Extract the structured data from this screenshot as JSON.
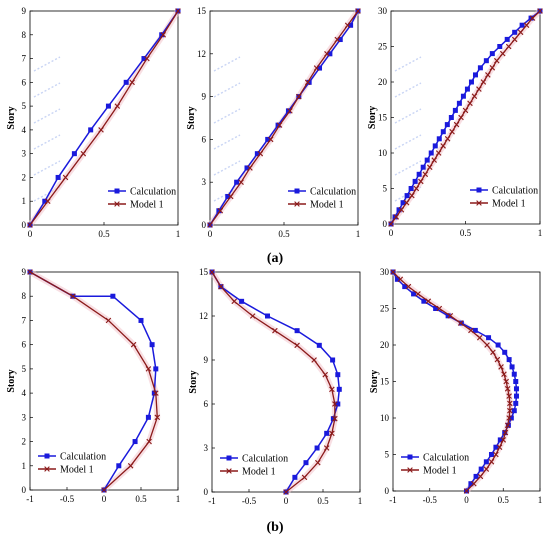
{
  "figure": {
    "panel_labels": [
      "(a)",
      "(b)"
    ]
  },
  "chart_data": [
    {
      "id": "a1",
      "type": "line",
      "ylabel": "Story",
      "xlim": [
        0,
        1
      ],
      "ylim": [
        0,
        9
      ],
      "xticks": [
        "0",
        "0.5",
        "1"
      ],
      "yticks": [
        "0",
        "1",
        "2",
        "3",
        "4",
        "5",
        "6",
        "7",
        "8",
        "9"
      ],
      "legend": "bottom-right",
      "series": [
        {
          "name": "Calculation",
          "color": "#1a1adc",
          "marker": "square",
          "x": [
            0,
            0.1,
            0.19,
            0.3,
            0.41,
            0.53,
            0.65,
            0.77,
            0.89,
            1.0
          ],
          "y": [
            0,
            1,
            2,
            3,
            4,
            5,
            6,
            7,
            8,
            9
          ]
        },
        {
          "name": "Model 1",
          "color": "#8b1a1a",
          "marker": "x",
          "x": [
            0,
            0.12,
            0.24,
            0.36,
            0.48,
            0.59,
            0.69,
            0.79,
            0.9,
            1.0
          ],
          "y": [
            0,
            1,
            2,
            3,
            4,
            5,
            6,
            7,
            8,
            9
          ]
        }
      ]
    },
    {
      "id": "a2",
      "type": "line",
      "ylabel": "Story",
      "xlim": [
        0,
        1
      ],
      "ylim": [
        0,
        15
      ],
      "xticks": [
        "0",
        "0.5",
        "1"
      ],
      "yticks": [
        "0",
        "3",
        "6",
        "9",
        "12",
        "15"
      ],
      "legend": "bottom-right",
      "series": [
        {
          "name": "Calculation",
          "color": "#1a1adc",
          "marker": "square",
          "x": [
            0,
            0.06,
            0.12,
            0.18,
            0.25,
            0.32,
            0.39,
            0.46,
            0.53,
            0.6,
            0.67,
            0.74,
            0.81,
            0.88,
            0.95,
            1.0
          ],
          "y": [
            0,
            1,
            2,
            3,
            4,
            5,
            6,
            7,
            8,
            9,
            10,
            11,
            12,
            13,
            14,
            15
          ]
        },
        {
          "name": "Model 1",
          "color": "#8b1a1a",
          "marker": "x",
          "x": [
            0,
            0.07,
            0.14,
            0.21,
            0.27,
            0.34,
            0.41,
            0.47,
            0.54,
            0.6,
            0.66,
            0.72,
            0.79,
            0.86,
            0.93,
            1.0
          ],
          "y": [
            0,
            1,
            2,
            3,
            4,
            5,
            6,
            7,
            8,
            9,
            10,
            11,
            12,
            13,
            14,
            15
          ]
        }
      ]
    },
    {
      "id": "a3",
      "type": "line",
      "ylabel": "Story",
      "xlim": [
        0,
        1
      ],
      "ylim": [
        0,
        30
      ],
      "xticks": [
        "0",
        "0.5",
        "1"
      ],
      "yticks": [
        "0",
        "5",
        "10",
        "15",
        "20",
        "25",
        "30"
      ],
      "legend": "bottom-right",
      "series": [
        {
          "name": "Calculation",
          "color": "#1a1adc",
          "marker": "square",
          "x": [
            0,
            0.027,
            0.054,
            0.081,
            0.108,
            0.135,
            0.162,
            0.189,
            0.216,
            0.243,
            0.27,
            0.297,
            0.324,
            0.351,
            0.378,
            0.405,
            0.432,
            0.459,
            0.486,
            0.513,
            0.54,
            0.567,
            0.6,
            0.64,
            0.68,
            0.73,
            0.78,
            0.83,
            0.88,
            0.94,
            1.0
          ],
          "y": [
            0,
            1,
            2,
            3,
            4,
            5,
            6,
            7,
            8,
            9,
            10,
            11,
            12,
            13,
            14,
            15,
            16,
            17,
            18,
            19,
            20,
            21,
            22,
            23,
            24,
            25,
            26,
            27,
            28,
            29,
            30
          ]
        },
        {
          "name": "Model 1",
          "color": "#8b1a1a",
          "marker": "x",
          "x": [
            0,
            0.035,
            0.07,
            0.105,
            0.14,
            0.17,
            0.2,
            0.23,
            0.26,
            0.29,
            0.32,
            0.35,
            0.38,
            0.41,
            0.44,
            0.47,
            0.5,
            0.53,
            0.56,
            0.59,
            0.62,
            0.65,
            0.68,
            0.71,
            0.75,
            0.79,
            0.83,
            0.87,
            0.91,
            0.95,
            1.0
          ],
          "y": [
            0,
            1,
            2,
            3,
            4,
            5,
            6,
            7,
            8,
            9,
            10,
            11,
            12,
            13,
            14,
            15,
            16,
            17,
            18,
            19,
            20,
            21,
            22,
            23,
            24,
            25,
            26,
            27,
            28,
            29,
            30
          ]
        }
      ]
    },
    {
      "id": "b1",
      "type": "line",
      "ylabel": "Story",
      "xlim": [
        -1,
        1
      ],
      "ylim": [
        0,
        9
      ],
      "xticks": [
        "-1",
        "-0.5",
        "0",
        "0.5",
        "1"
      ],
      "yticks": [
        "0",
        "1",
        "2",
        "3",
        "4",
        "5",
        "6",
        "7",
        "8",
        "9"
      ],
      "legend": "bottom-left",
      "series": [
        {
          "name": "Calculation",
          "color": "#1a1adc",
          "marker": "square",
          "x": [
            0,
            0.2,
            0.42,
            0.6,
            0.68,
            0.7,
            0.65,
            0.5,
            0.12,
            -0.42,
            -1.0
          ],
          "y": [
            0,
            1,
            2,
            3,
            4,
            5,
            6,
            7,
            8,
            8,
            9
          ]
        },
        {
          "name": "Model 1",
          "color": "#8b1a1a",
          "marker": "x",
          "x": [
            0,
            0.36,
            0.61,
            0.72,
            0.7,
            0.6,
            0.4,
            0.06,
            -0.42,
            -1.0
          ],
          "y": [
            0,
            1,
            2,
            3,
            4,
            5,
            6,
            7,
            8,
            9
          ]
        }
      ]
    },
    {
      "id": "b2",
      "type": "line",
      "ylabel": "Story",
      "xlim": [
        -1,
        1
      ],
      "ylim": [
        0,
        15
      ],
      "xticks": [
        "-1",
        "-0.5",
        "0",
        "0.5",
        "1"
      ],
      "yticks": [
        "0",
        "3",
        "6",
        "9",
        "12",
        "15"
      ],
      "legend": "bottom-left",
      "series": [
        {
          "name": "Calculation",
          "color": "#1a1adc",
          "marker": "square",
          "x": [
            0,
            0.12,
            0.27,
            0.42,
            0.55,
            0.64,
            0.7,
            0.72,
            0.7,
            0.63,
            0.45,
            0.15,
            -0.25,
            -0.6,
            -0.88,
            -1.0
          ],
          "y": [
            0,
            1,
            2,
            3,
            4,
            5,
            6,
            7,
            8,
            9,
            10,
            11,
            12,
            13,
            14,
            15
          ]
        },
        {
          "name": "Model 1",
          "color": "#8b1a1a",
          "marker": "x",
          "x": [
            0,
            0.25,
            0.43,
            0.55,
            0.62,
            0.66,
            0.66,
            0.62,
            0.53,
            0.38,
            0.15,
            -0.15,
            -0.45,
            -0.7,
            -0.88,
            -1.0
          ],
          "y": [
            0,
            1,
            2,
            3,
            4,
            5,
            6,
            7,
            8,
            9,
            10,
            11,
            12,
            13,
            14,
            15
          ]
        }
      ]
    },
    {
      "id": "b3",
      "type": "line",
      "ylabel": "Story",
      "xlim": [
        -1,
        1
      ],
      "ylim": [
        0,
        30
      ],
      "xticks": [
        "-1",
        "-0.5",
        "0",
        "0.5",
        "1"
      ],
      "yticks": [
        "0",
        "5",
        "10",
        "15",
        "20",
        "25",
        "30"
      ],
      "legend": "bottom-left",
      "series": [
        {
          "name": "Calculation",
          "color": "#1a1adc",
          "marker": "square",
          "x": [
            0,
            0.06,
            0.13,
            0.2,
            0.27,
            0.34,
            0.4,
            0.46,
            0.52,
            0.57,
            0.61,
            0.65,
            0.67,
            0.68,
            0.68,
            0.67,
            0.65,
            0.62,
            0.58,
            0.52,
            0.43,
            0.3,
            0.12,
            -0.07,
            -0.25,
            -0.42,
            -0.58,
            -0.72,
            -0.84,
            -0.94,
            -1.0
          ],
          "y": [
            0,
            1,
            2,
            3,
            4,
            5,
            6,
            7,
            8,
            9,
            10,
            11,
            12,
            13,
            14,
            15,
            16,
            17,
            18,
            19,
            20,
            21,
            22,
            23,
            24,
            25,
            26,
            27,
            28,
            29,
            30
          ]
        },
        {
          "name": "Model 1",
          "color": "#8b1a1a",
          "marker": "x",
          "x": [
            0,
            0.1,
            0.19,
            0.27,
            0.34,
            0.4,
            0.45,
            0.5,
            0.53,
            0.56,
            0.58,
            0.59,
            0.59,
            0.58,
            0.56,
            0.54,
            0.51,
            0.47,
            0.42,
            0.36,
            0.28,
            0.18,
            0.06,
            -0.08,
            -0.22,
            -0.37,
            -0.52,
            -0.66,
            -0.79,
            -0.9,
            -1.0
          ],
          "y": [
            0,
            1,
            2,
            3,
            4,
            5,
            6,
            7,
            8,
            9,
            10,
            11,
            12,
            13,
            14,
            15,
            16,
            17,
            18,
            19,
            20,
            21,
            22,
            23,
            24,
            25,
            26,
            27,
            28,
            29,
            30
          ]
        }
      ]
    }
  ]
}
